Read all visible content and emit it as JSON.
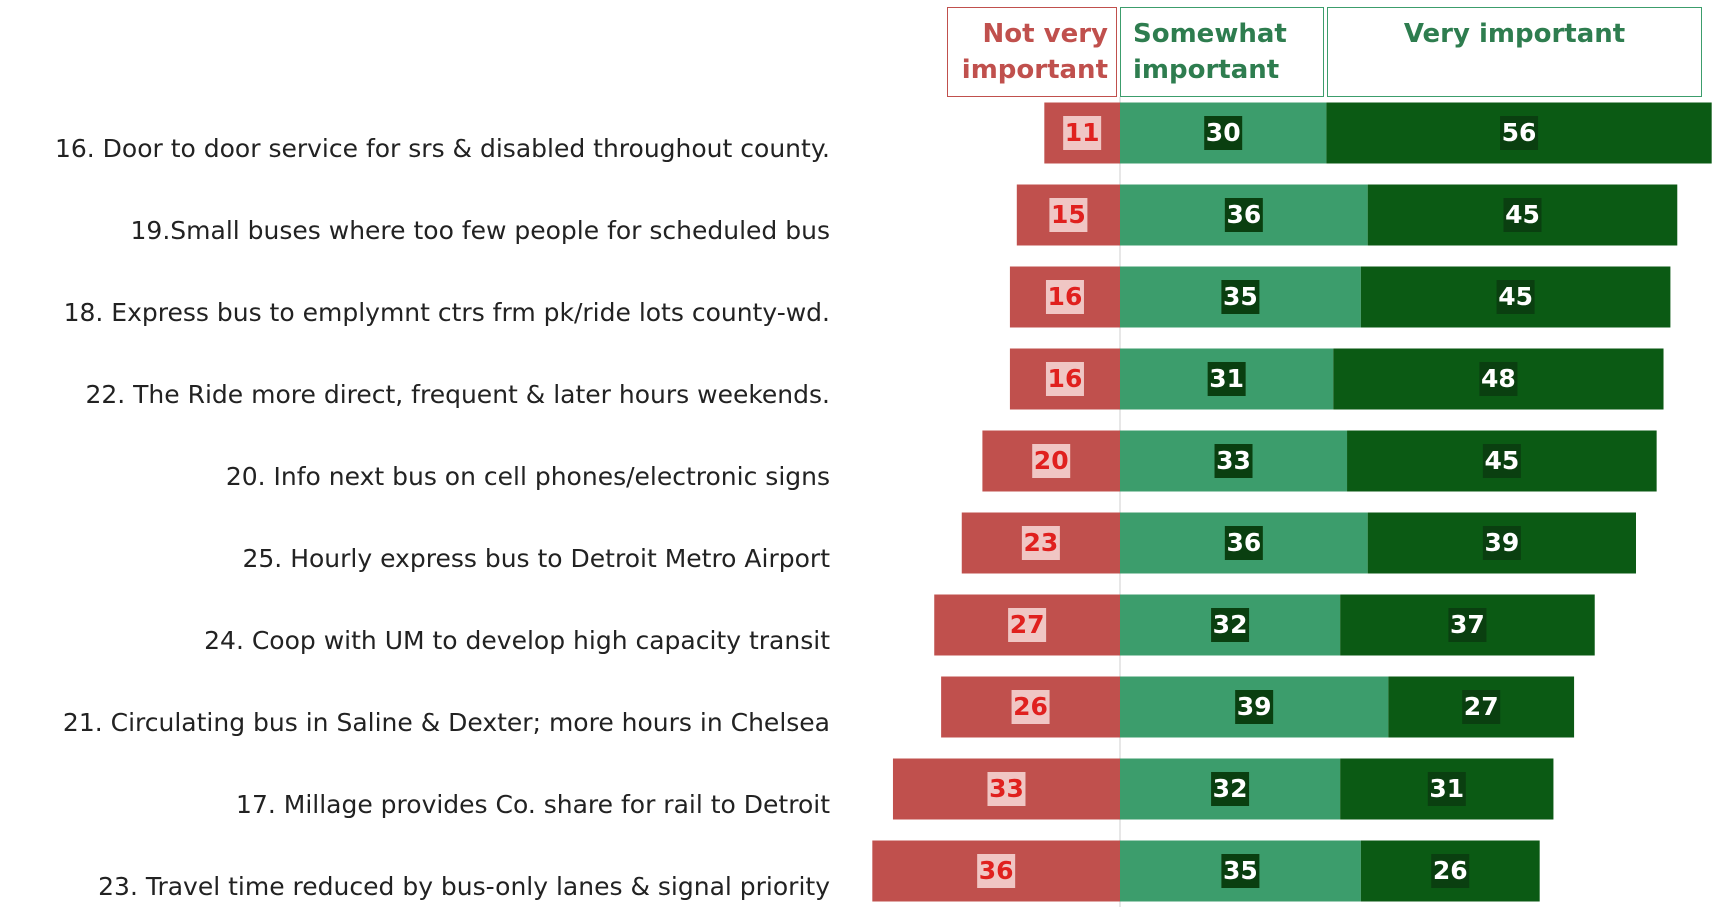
{
  "chart_data": {
    "type": "diverging-stacked-bar",
    "categories": [
      "16. Door to door service for srs & disabled throughout county.",
      "19.Small buses where too few people for scheduled bus",
      "18. Express bus to emplymnt ctrs frm pk/ride lots county-wd.",
      "22. The Ride more direct, frequent & later hours weekends.",
      "20. Info next bus on cell phones/electronic signs",
      "25. Hourly express bus to Detroit Metro Airport",
      "24. Coop with UM to develop high capacity transit",
      "21. Circulating bus in Saline & Dexter; more hours in Chelsea",
      "17. Millage provides Co. share for rail to Detroit",
      "23. Travel time reduced by bus-only lanes & signal priority"
    ],
    "series": [
      {
        "name": "Not very important",
        "color": "#c0504d",
        "values": [
          11,
          15,
          16,
          16,
          20,
          23,
          27,
          26,
          33,
          36
        ]
      },
      {
        "name": "Somewhat important",
        "color": "#3c9d6c",
        "values": [
          30,
          36,
          35,
          31,
          33,
          36,
          32,
          39,
          32,
          35
        ]
      },
      {
        "name": "Very important",
        "color": "#0b5a14",
        "values": [
          56,
          45,
          45,
          48,
          45,
          39,
          37,
          27,
          31,
          26
        ]
      }
    ]
  }
}
